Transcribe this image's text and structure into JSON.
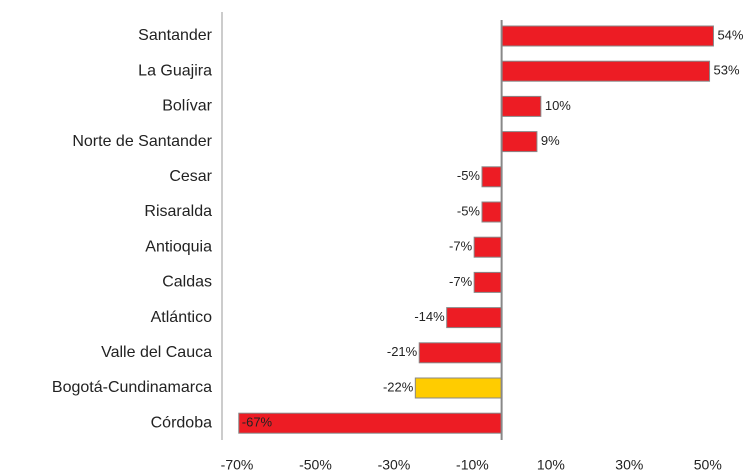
{
  "chart_data": {
    "type": "bar",
    "orientation": "horizontal",
    "categories": [
      "Santander",
      "La Guajira",
      "Bolívar",
      "Norte de Santander",
      "Cesar",
      "Risaralda",
      "Antioquia",
      "Caldas",
      "Atlántico",
      "Valle del Cauca",
      "Bogotá-Cundinamarca",
      "Córdoba"
    ],
    "values": [
      54,
      53,
      10,
      9,
      -5,
      -5,
      -7,
      -7,
      -14,
      -21,
      -22,
      -67
    ],
    "value_labels": [
      "54%",
      "53%",
      "10%",
      "9%",
      "-5%",
      "-5%",
      "-7%",
      "-7%",
      "-14%",
      "-21%",
      "-22%",
      "-67%"
    ],
    "colors": [
      "#ed1c24",
      "#ed1c24",
      "#ed1c24",
      "#ed1c24",
      "#ed1c24",
      "#ed1c24",
      "#ed1c24",
      "#ed1c24",
      "#ed1c24",
      "#ed1c24",
      "#ffcc00",
      "#ed1c24"
    ],
    "xlim": [
      -70,
      60
    ],
    "xticks": [
      {
        "value": -70,
        "label": "-70%"
      },
      {
        "value": -50,
        "label": "-50%"
      },
      {
        "value": -30,
        "label": "-30%"
      },
      {
        "value": -10,
        "label": "-10%"
      },
      {
        "value": 10,
        "label": "10%"
      },
      {
        "value": 30,
        "label": "30%"
      },
      {
        "value": 50,
        "label": "50%"
      }
    ],
    "grid": false
  }
}
